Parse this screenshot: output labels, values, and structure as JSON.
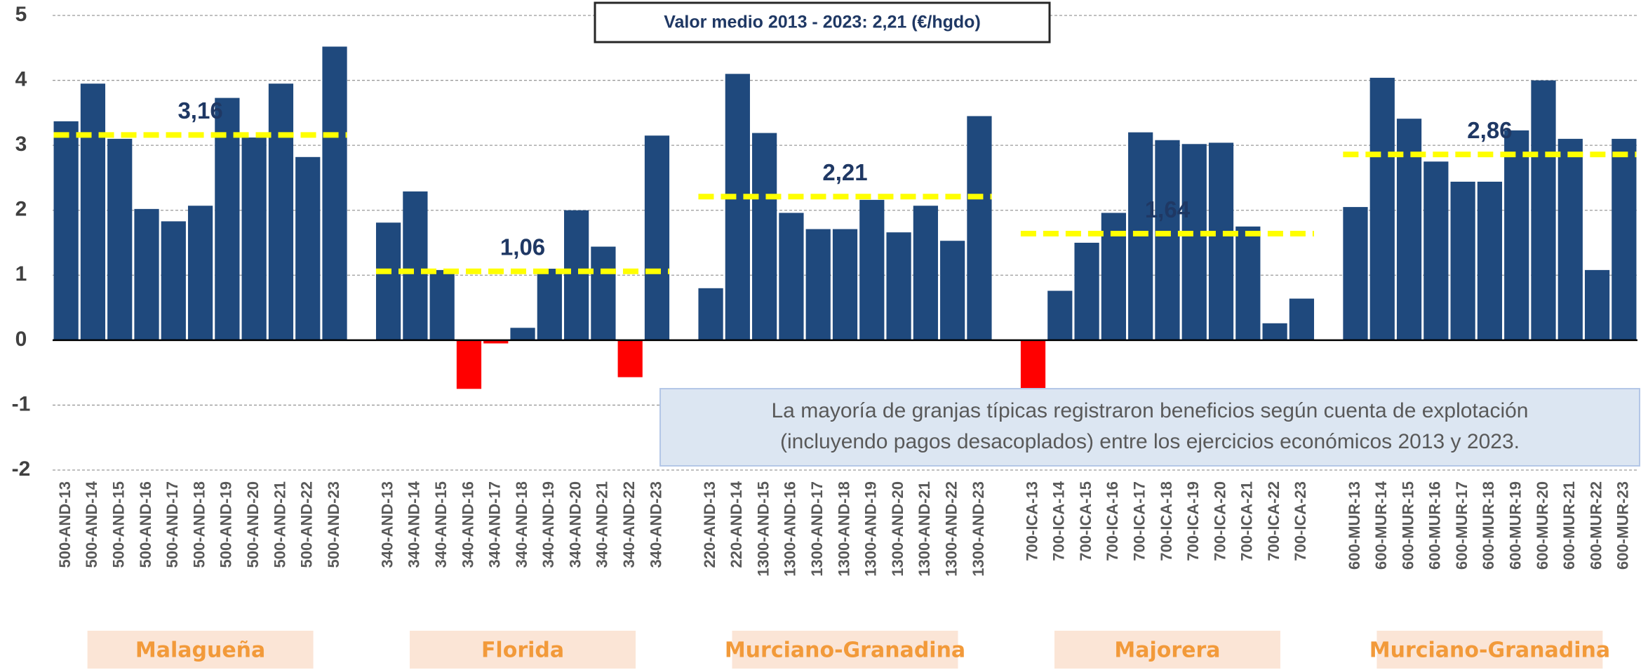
{
  "chart_data": {
    "type": "bar",
    "title": "Valor medio 2013 - 2023: 2,21 (€/hgdo)",
    "annotation": [
      "La mayoría de granjas típicas registraron beneficios según cuenta de explotación",
      "(incluyendo pagos desacoplados) entre los ejercicios económicos 2013 y 2023."
    ],
    "categories": [
      "500-AND-13",
      "500-AND-14",
      "500-AND-15",
      "500-AND-16",
      "500-AND-17",
      "500-AND-18",
      "500-AND-19",
      "500-AND-20",
      "500-AND-21",
      "500-AND-22",
      "500-AND-23",
      null,
      "340-AND-13",
      "340-AND-14",
      "340-AND-15",
      "340-AND-16",
      "340-AND-17",
      "340-AND-18",
      "340-AND-19",
      "340-AND-20",
      "340-AND-21",
      "340-AND-22",
      "340-AND-23",
      null,
      "220-AND-13",
      "220-AND-14",
      "1300-AND-15",
      "1300-AND-16",
      "1300-AND-17",
      "1300-AND-18",
      "1300-AND-19",
      "1300-AND-20",
      "1300-AND-21",
      "1300-AND-22",
      "1300-AND-23",
      null,
      "700-ICA-13",
      "700-ICA-14",
      "700-ICA-15",
      "700-ICA-16",
      "700-ICA-17",
      "700-ICA-18",
      "700-ICA-19",
      "700-ICA-20",
      "700-ICA-21",
      "700-ICA-22",
      "700-ICA-23",
      null,
      "600-MUR-13",
      "600-MUR-14",
      "600-MUR-15",
      "600-MUR-16",
      "600-MUR-17",
      "600-MUR-18",
      "600-MUR-19",
      "600-MUR-20",
      "600-MUR-21",
      "600-MUR-22",
      "600-MUR-23"
    ],
    "values": [
      3.37,
      3.95,
      3.1,
      2.02,
      1.83,
      2.07,
      3.73,
      3.12,
      3.95,
      2.82,
      4.52,
      null,
      1.81,
      2.29,
      1.08,
      -0.75,
      -0.05,
      0.19,
      1.1,
      2.0,
      1.44,
      -0.57,
      3.15,
      null,
      0.8,
      4.1,
      3.19,
      1.96,
      1.71,
      1.71,
      2.16,
      1.66,
      2.07,
      1.53,
      3.45,
      null,
      -0.76,
      0.76,
      1.5,
      1.96,
      3.2,
      3.08,
      3.02,
      3.04,
      1.75,
      0.26,
      0.64,
      null,
      2.05,
      4.04,
      3.41,
      2.75,
      2.44,
      2.44,
      3.23,
      4.0,
      3.1,
      1.08,
      3.1
    ],
    "color": "#1f497d",
    "negative_color": "#ff0000",
    "groups": [
      {
        "name": "Malagueña",
        "mean": 3.16,
        "mean_label": "3,16"
      },
      {
        "name": "Florida",
        "mean": 1.06,
        "mean_label": "1,06"
      },
      {
        "name": "Murciano-Granadina",
        "mean": 2.21,
        "mean_label": "2,21"
      },
      {
        "name": "Majorera",
        "mean": 1.64,
        "mean_label": "1,64"
      },
      {
        "name": "Murciano-Granadina",
        "mean": 2.86,
        "mean_label": "2,86"
      }
    ],
    "mean_line_color": "#ffff00",
    "ylim": [
      -2,
      5
    ],
    "yticks": [
      -2,
      -1,
      0,
      1,
      2,
      3,
      4,
      5
    ],
    "grid": true
  }
}
